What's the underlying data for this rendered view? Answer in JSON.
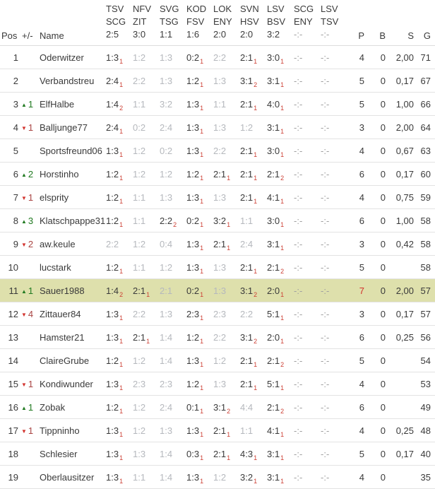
{
  "colors": {
    "highlight_row_bg": "#dee0ac",
    "scored_text": "#3a3a3a",
    "missed_text": "#b5b8bd",
    "pending_text": "#a0a0a0",
    "points_subscript_red": "#cc3e33",
    "rank_up_green": "#217a21",
    "rank_down_red": "#d2322d",
    "rank_down_number": "#a94442",
    "best_points_red": "#d2322d",
    "row_border": "#e3e3e3"
  },
  "header": {
    "pos": "Pos",
    "movement": "+/-",
    "name": "Name",
    "matches": [
      {
        "home": "TSV",
        "away": "SCG",
        "result": "2:5"
      },
      {
        "home": "NFV",
        "away": "ZIT",
        "result": "3:0"
      },
      {
        "home": "SVG",
        "away": "TSG",
        "result": "1:1"
      },
      {
        "home": "KOD",
        "away": "FSV",
        "result": "1:6"
      },
      {
        "home": "LOK",
        "away": "ENY",
        "result": "2:0"
      },
      {
        "home": "SVN",
        "away": "HSV",
        "result": "2:0"
      },
      {
        "home": "LSV",
        "away": "BSV",
        "result": "3:2"
      },
      {
        "home": "SCG",
        "away": "ENY",
        "result": "-:-"
      },
      {
        "home": "LSV",
        "away": "TSV",
        "result": "-:-"
      }
    ],
    "stats": {
      "p": "P",
      "b": "B",
      "s": "S",
      "g": "G"
    }
  },
  "rows": [
    {
      "pos": "1",
      "movement": null,
      "name": "Oderwitzer",
      "tips": [
        {
          "s": "1:3",
          "p": "1"
        },
        {
          "s": "1:2"
        },
        {
          "s": "1:3"
        },
        {
          "s": "0:2",
          "p": "1"
        },
        {
          "s": "2:2"
        },
        {
          "s": "2:1",
          "p": "1"
        },
        {
          "s": "3:0",
          "p": "1"
        },
        {
          "s": "-:-"
        },
        {
          "s": "-:-"
        }
      ],
      "p": "4",
      "b": "0",
      "sq": "2,00",
      "g": "71"
    },
    {
      "pos": "2",
      "movement": null,
      "name": "Verbandstreu",
      "tips": [
        {
          "s": "2:4",
          "p": "1"
        },
        {
          "s": "2:2"
        },
        {
          "s": "1:3"
        },
        {
          "s": "1:2",
          "p": "1"
        },
        {
          "s": "1:3"
        },
        {
          "s": "3:1",
          "p": "2"
        },
        {
          "s": "3:1",
          "p": "1"
        },
        {
          "s": "-:-"
        },
        {
          "s": "-:-"
        }
      ],
      "p": "5",
      "b": "0",
      "sq": "0,17",
      "g": "67"
    },
    {
      "pos": "3",
      "movement": {
        "dir": "up",
        "n": "1"
      },
      "name": "ElfHalbe",
      "tips": [
        {
          "s": "1:4",
          "p": "2"
        },
        {
          "s": "1:1"
        },
        {
          "s": "3:2"
        },
        {
          "s": "1:3",
          "p": "1"
        },
        {
          "s": "1:1"
        },
        {
          "s": "2:1",
          "p": "1"
        },
        {
          "s": "4:0",
          "p": "1"
        },
        {
          "s": "-:-"
        },
        {
          "s": "-:-"
        }
      ],
      "p": "5",
      "b": "0",
      "sq": "1,00",
      "g": "66"
    },
    {
      "pos": "4",
      "movement": {
        "dir": "down",
        "n": "1"
      },
      "name": "Balljunge77",
      "tips": [
        {
          "s": "2:4",
          "p": "1"
        },
        {
          "s": "0:2"
        },
        {
          "s": "2:4"
        },
        {
          "s": "1:3",
          "p": "1"
        },
        {
          "s": "1:3"
        },
        {
          "s": "1:2"
        },
        {
          "s": "3:1",
          "p": "1"
        },
        {
          "s": "-:-"
        },
        {
          "s": "-:-"
        }
      ],
      "p": "3",
      "b": "0",
      "sq": "2,00",
      "g": "64"
    },
    {
      "pos": "5",
      "movement": null,
      "name": "Sportsfreund06",
      "tips": [
        {
          "s": "1:3",
          "p": "1"
        },
        {
          "s": "1:2"
        },
        {
          "s": "0:2"
        },
        {
          "s": "1:3",
          "p": "1"
        },
        {
          "s": "2:2"
        },
        {
          "s": "2:1",
          "p": "1"
        },
        {
          "s": "3:0",
          "p": "1"
        },
        {
          "s": "-:-"
        },
        {
          "s": "-:-"
        }
      ],
      "p": "4",
      "b": "0",
      "sq": "0,67",
      "g": "63"
    },
    {
      "pos": "6",
      "movement": {
        "dir": "up",
        "n": "2"
      },
      "name": "Horstinho",
      "tips": [
        {
          "s": "1:2",
          "p": "1"
        },
        {
          "s": "1:2"
        },
        {
          "s": "1:2"
        },
        {
          "s": "1:2",
          "p": "1"
        },
        {
          "s": "2:1",
          "p": "1"
        },
        {
          "s": "2:1",
          "p": "1"
        },
        {
          "s": "2:1",
          "p": "2"
        },
        {
          "s": "-:-"
        },
        {
          "s": "-:-"
        }
      ],
      "p": "6",
      "b": "0",
      "sq": "0,17",
      "g": "60"
    },
    {
      "pos": "7",
      "movement": {
        "dir": "down",
        "n": "1"
      },
      "name": "elsprity",
      "tips": [
        {
          "s": "1:2",
          "p": "1"
        },
        {
          "s": "1:1"
        },
        {
          "s": "1:3"
        },
        {
          "s": "1:3",
          "p": "1"
        },
        {
          "s": "1:3"
        },
        {
          "s": "2:1",
          "p": "1"
        },
        {
          "s": "4:1",
          "p": "1"
        },
        {
          "s": "-:-"
        },
        {
          "s": "-:-"
        }
      ],
      "p": "4",
      "b": "0",
      "sq": "0,75",
      "g": "59"
    },
    {
      "pos": "8",
      "movement": {
        "dir": "up",
        "n": "3"
      },
      "name": "Klatschpappe31",
      "tips": [
        {
          "s": "1:2",
          "p": "1"
        },
        {
          "s": "1:1"
        },
        {
          "s": "2:2",
          "p": "2"
        },
        {
          "s": "0:2",
          "p": "1"
        },
        {
          "s": "3:2",
          "p": "1"
        },
        {
          "s": "1:1"
        },
        {
          "s": "3:0",
          "p": "1"
        },
        {
          "s": "-:-"
        },
        {
          "s": "-:-"
        }
      ],
      "p": "6",
      "b": "0",
      "sq": "1,00",
      "g": "58"
    },
    {
      "pos": "9",
      "movement": {
        "dir": "down",
        "n": "2"
      },
      "name": "aw.keule",
      "tips": [
        {
          "s": "2:2"
        },
        {
          "s": "1:2"
        },
        {
          "s": "0:4"
        },
        {
          "s": "1:3",
          "p": "1"
        },
        {
          "s": "2:1",
          "p": "1"
        },
        {
          "s": "2:4"
        },
        {
          "s": "3:1",
          "p": "1"
        },
        {
          "s": "-:-"
        },
        {
          "s": "-:-"
        }
      ],
      "p": "3",
      "b": "0",
      "sq": "0,42",
      "g": "58"
    },
    {
      "pos": "10",
      "movement": null,
      "name": "lucstark",
      "tips": [
        {
          "s": "1:2",
          "p": "1"
        },
        {
          "s": "1:1"
        },
        {
          "s": "1:2"
        },
        {
          "s": "1:3",
          "p": "1"
        },
        {
          "s": "1:3"
        },
        {
          "s": "2:1",
          "p": "1"
        },
        {
          "s": "2:1",
          "p": "2"
        },
        {
          "s": "-:-"
        },
        {
          "s": "-:-"
        }
      ],
      "p": "5",
      "b": "0",
      "sq": "",
      "g": "58"
    },
    {
      "pos": "11",
      "movement": {
        "dir": "up",
        "n": "1"
      },
      "name": "Sauer1988",
      "highlight": true,
      "p_best": true,
      "tips": [
        {
          "s": "1:4",
          "p": "2"
        },
        {
          "s": "2:1",
          "p": "1"
        },
        {
          "s": "2:1"
        },
        {
          "s": "0:2",
          "p": "1"
        },
        {
          "s": "1:3"
        },
        {
          "s": "3:1",
          "p": "2"
        },
        {
          "s": "2:0",
          "p": "1"
        },
        {
          "s": "-:-"
        },
        {
          "s": "-:-"
        }
      ],
      "p": "7",
      "b": "0",
      "sq": "2,00",
      "g": "57"
    },
    {
      "pos": "12",
      "movement": {
        "dir": "down",
        "n": "4"
      },
      "name": "Zittauer84",
      "tips": [
        {
          "s": "1:3",
          "p": "1"
        },
        {
          "s": "2:2"
        },
        {
          "s": "1:3"
        },
        {
          "s": "2:3",
          "p": "1"
        },
        {
          "s": "2:3"
        },
        {
          "s": "2:2"
        },
        {
          "s": "5:1",
          "p": "1"
        },
        {
          "s": "-:-"
        },
        {
          "s": "-:-"
        }
      ],
      "p": "3",
      "b": "0",
      "sq": "0,17",
      "g": "57"
    },
    {
      "pos": "13",
      "movement": null,
      "name": "Hamster21",
      "tips": [
        {
          "s": "1:3",
          "p": "1"
        },
        {
          "s": "2:1",
          "p": "1"
        },
        {
          "s": "1:4"
        },
        {
          "s": "1:2",
          "p": "1"
        },
        {
          "s": "2:2"
        },
        {
          "s": "3:1",
          "p": "2"
        },
        {
          "s": "2:0",
          "p": "1"
        },
        {
          "s": "-:-"
        },
        {
          "s": "-:-"
        }
      ],
      "p": "6",
      "b": "0",
      "sq": "0,25",
      "g": "56"
    },
    {
      "pos": "14",
      "movement": null,
      "name": "ClaireGrube",
      "tips": [
        {
          "s": "1:2",
          "p": "1"
        },
        {
          "s": "1:2"
        },
        {
          "s": "1:4"
        },
        {
          "s": "1:3",
          "p": "1"
        },
        {
          "s": "1:2"
        },
        {
          "s": "2:1",
          "p": "1"
        },
        {
          "s": "2:1",
          "p": "2"
        },
        {
          "s": "-:-"
        },
        {
          "s": "-:-"
        }
      ],
      "p": "5",
      "b": "0",
      "sq": "",
      "g": "54"
    },
    {
      "pos": "15",
      "movement": {
        "dir": "down",
        "n": "1"
      },
      "name": "Kondiwunder",
      "tips": [
        {
          "s": "1:3",
          "p": "1"
        },
        {
          "s": "2:3"
        },
        {
          "s": "2:3"
        },
        {
          "s": "1:2",
          "p": "1"
        },
        {
          "s": "1:3"
        },
        {
          "s": "2:1",
          "p": "1"
        },
        {
          "s": "5:1",
          "p": "1"
        },
        {
          "s": "-:-"
        },
        {
          "s": "-:-"
        }
      ],
      "p": "4",
      "b": "0",
      "sq": "",
      "g": "53"
    },
    {
      "pos": "16",
      "movement": {
        "dir": "up",
        "n": "1"
      },
      "name": "Zobak",
      "tips": [
        {
          "s": "1:2",
          "p": "1"
        },
        {
          "s": "1:2"
        },
        {
          "s": "2:4"
        },
        {
          "s": "0:1",
          "p": "1"
        },
        {
          "s": "3:1",
          "p": "2"
        },
        {
          "s": "4:4"
        },
        {
          "s": "2:1",
          "p": "2"
        },
        {
          "s": "-:-"
        },
        {
          "s": "-:-"
        }
      ],
      "p": "6",
      "b": "0",
      "sq": "",
      "g": "49"
    },
    {
      "pos": "17",
      "movement": {
        "dir": "down",
        "n": "1"
      },
      "name": "Tippninho",
      "tips": [
        {
          "s": "1:3",
          "p": "1"
        },
        {
          "s": "1:2"
        },
        {
          "s": "1:3"
        },
        {
          "s": "1:3",
          "p": "1"
        },
        {
          "s": "2:1",
          "p": "1"
        },
        {
          "s": "1:1"
        },
        {
          "s": "4:1",
          "p": "1"
        },
        {
          "s": "-:-"
        },
        {
          "s": "-:-"
        }
      ],
      "p": "4",
      "b": "0",
      "sq": "0,25",
      "g": "48"
    },
    {
      "pos": "18",
      "movement": null,
      "name": "Schlesier",
      "tips": [
        {
          "s": "1:3",
          "p": "1"
        },
        {
          "s": "1:3"
        },
        {
          "s": "1:4"
        },
        {
          "s": "0:3",
          "p": "1"
        },
        {
          "s": "2:1",
          "p": "1"
        },
        {
          "s": "4:3",
          "p": "1"
        },
        {
          "s": "3:1",
          "p": "1"
        },
        {
          "s": "-:-"
        },
        {
          "s": "-:-"
        }
      ],
      "p": "5",
      "b": "0",
      "sq": "0,17",
      "g": "40"
    },
    {
      "pos": "19",
      "movement": null,
      "name": "Oberlausitzer",
      "tips": [
        {
          "s": "1:3",
          "p": "1"
        },
        {
          "s": "1:1"
        },
        {
          "s": "1:4"
        },
        {
          "s": "1:3",
          "p": "1"
        },
        {
          "s": "1:2"
        },
        {
          "s": "3:2",
          "p": "1"
        },
        {
          "s": "3:1",
          "p": "1"
        },
        {
          "s": "-:-"
        },
        {
          "s": "-:-"
        }
      ],
      "p": "4",
      "b": "0",
      "sq": "",
      "g": "35"
    }
  ]
}
